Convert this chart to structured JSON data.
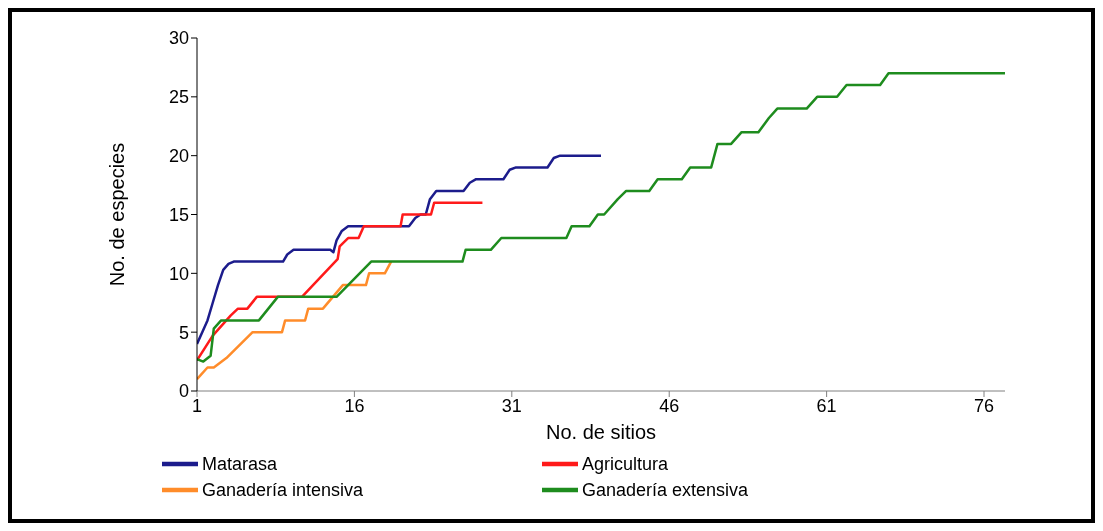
{
  "chart_data": {
    "type": "line",
    "xlabel": "No. de sitios",
    "ylabel": "No. de especies",
    "xlim": [
      1,
      78
    ],
    "xticks": [
      1,
      16,
      31,
      46,
      61,
      76
    ],
    "ylim": [
      0,
      30
    ],
    "yticks": [
      0,
      5,
      10,
      15,
      20,
      25,
      30
    ],
    "grid": false,
    "legend": "bottom",
    "marker": "none",
    "line_style": "solid",
    "series": [
      {
        "name": "Matarasa",
        "color": "#1c1c8c",
        "x": [
          1,
          1.5,
          2,
          2.5,
          3,
          3.5,
          4,
          4.5,
          9.2,
          9.6,
          10.2,
          13.7,
          14,
          14.3,
          14.8,
          15.4,
          21.2,
          21.8,
          22.3,
          22.8,
          23.2,
          23.8,
          26.4,
          27,
          27.6,
          30.2,
          30.8,
          31.4,
          34.4,
          35,
          35.6,
          39.5
        ],
        "values": [
          4,
          5,
          6,
          7.5,
          9,
          10.3,
          10.8,
          11,
          11,
          11.6,
          12,
          12,
          11.8,
          12.8,
          13.6,
          14,
          14,
          14.7,
          15,
          15,
          16.3,
          17,
          17,
          17.7,
          18,
          18,
          18.8,
          19,
          19,
          19.8,
          20,
          20
        ]
      },
      {
        "name": "Agricultura",
        "color": "#ff1a1a",
        "x": [
          1,
          2.5,
          4.2,
          4.9,
          5.8,
          6.7,
          11,
          14.4,
          14.6,
          15.4,
          16.4,
          16.9,
          20.4,
          20.6,
          23.3,
          23.6,
          28.2
        ],
        "values": [
          2.6,
          4.7,
          6.4,
          7,
          7,
          8,
          8,
          11.2,
          12.3,
          13,
          13,
          14,
          14,
          15,
          15,
          16,
          16
        ]
      },
      {
        "name": "Ganadería intensiva",
        "color": "#ff8c2a",
        "x": [
          1,
          2,
          2.6,
          3.8,
          6.3,
          9.1,
          9.4,
          11.3,
          11.6,
          13,
          14.9,
          17.1,
          17.4,
          18.9,
          19.5
        ],
        "values": [
          1,
          2,
          2,
          2.8,
          5,
          5,
          6,
          6,
          7,
          7,
          9,
          9,
          10,
          10,
          11
        ]
      },
      {
        "name": "Ganadería extensiva",
        "color": "#1e8c1e",
        "x": [
          1,
          1.6,
          2.3,
          2.6,
          3.3,
          6.9,
          8.7,
          14.3,
          17.6,
          26.3,
          26.6,
          29,
          30,
          36.2,
          36.7,
          38.4,
          39.2,
          39.8,
          41.1,
          41.9,
          44.1,
          44.9,
          47.2,
          48,
          50,
          50.6,
          51.9,
          52.9,
          54.5,
          55.5,
          56.3,
          59.1,
          60.1,
          62,
          62.9,
          66.1,
          66.9,
          78
        ],
        "values": [
          2.7,
          2.5,
          3,
          5.3,
          6,
          6,
          8,
          8,
          11,
          11,
          12,
          12,
          13,
          13,
          14,
          14,
          15,
          15,
          16.3,
          17,
          17,
          18,
          18,
          19,
          19,
          21,
          21,
          22,
          22,
          23.2,
          24,
          24,
          25,
          25,
          26,
          26,
          27,
          27
        ]
      }
    ]
  }
}
